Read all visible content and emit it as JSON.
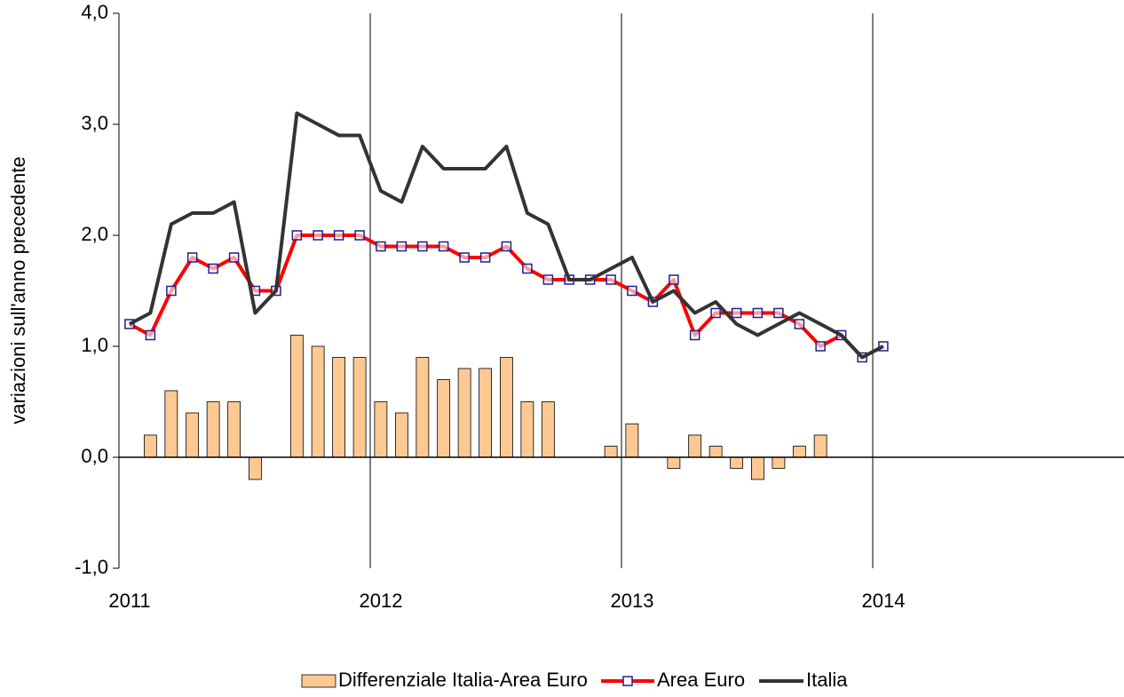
{
  "chart_data": {
    "type": "bar-line",
    "y_label": "variazioni sull'anno precedente",
    "xlim": [
      2011,
      2015
    ],
    "xticks": [
      2011,
      2012,
      2013,
      2014
    ],
    "ylim": [
      -1,
      4
    ],
    "yticks": [
      {
        "value": -1,
        "label": "-1,0"
      },
      {
        "value": 0,
        "label": "0,0"
      },
      {
        "value": 1,
        "label": "1,0"
      },
      {
        "value": 2,
        "label": "2,0"
      },
      {
        "value": 3,
        "label": "3,0"
      },
      {
        "value": 4,
        "label": "4,0"
      }
    ],
    "grid": true,
    "legend": "bottom",
    "x": [
      2011.042,
      2011.125,
      2011.208,
      2011.292,
      2011.375,
      2011.458,
      2011.542,
      2011.625,
      2011.708,
      2011.792,
      2011.875,
      2011.958,
      2012.042,
      2012.125,
      2012.208,
      2012.292,
      2012.375,
      2012.458,
      2012.542,
      2012.625,
      2012.708,
      2012.792,
      2012.875,
      2012.958,
      2013.042,
      2013.125,
      2013.208,
      2013.292,
      2013.375,
      2013.458,
      2013.542,
      2013.625,
      2013.708,
      2013.792,
      2013.875,
      2013.958,
      2014.042
    ],
    "series": [
      {
        "name": "Differenziale Italia-Area Euro",
        "kind": "bar",
        "color": "#fcc993",
        "values": [
          0,
          0.2,
          0.6,
          0.4,
          0.5,
          0.5,
          -0.2,
          0,
          1.1,
          1.0,
          0.9,
          0.9,
          0.5,
          0.4,
          0.9,
          0.7,
          0.8,
          0.8,
          0.9,
          0.5,
          0.5,
          0,
          0,
          0.1,
          0.3,
          0,
          -0.1,
          0.2,
          0.1,
          -0.1,
          -0.2,
          -0.1,
          0.1,
          0.2,
          0,
          0,
          0
        ]
      },
      {
        "name": "Area Euro",
        "kind": "line",
        "color": "#ff0000",
        "marker": "square",
        "values": [
          1.2,
          1.1,
          1.5,
          1.8,
          1.7,
          1.8,
          1.5,
          1.5,
          2.0,
          2.0,
          2.0,
          2.0,
          1.9,
          1.9,
          1.9,
          1.9,
          1.8,
          1.8,
          1.9,
          1.7,
          1.6,
          1.6,
          1.6,
          1.6,
          1.5,
          1.4,
          1.6,
          1.1,
          1.3,
          1.3,
          1.3,
          1.3,
          1.2,
          1.0,
          1.1,
          0.9,
          1.0
        ]
      },
      {
        "name": "Italia",
        "kind": "line",
        "color": "#333333",
        "values": [
          1.2,
          1.3,
          2.1,
          2.2,
          2.2,
          2.3,
          1.3,
          1.5,
          3.1,
          3.0,
          2.9,
          2.9,
          2.4,
          2.3,
          2.8,
          2.6,
          2.6,
          2.6,
          2.8,
          2.2,
          2.1,
          1.6,
          1.6,
          1.7,
          1.8,
          1.4,
          1.5,
          1.3,
          1.4,
          1.2,
          1.1,
          1.2,
          1.3,
          1.2,
          1.1,
          0.9,
          1.0
        ]
      }
    ]
  }
}
